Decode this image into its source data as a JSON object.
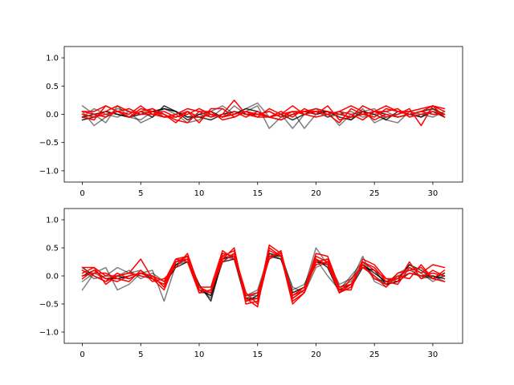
{
  "chart_data": [
    {
      "type": "line",
      "xlim": [
        -1.55,
        32.55
      ],
      "ylim": [
        -1.2,
        1.2
      ],
      "xticks": [
        0,
        5,
        10,
        15,
        20,
        25,
        30
      ],
      "xtick_labels": [
        "0",
        "5",
        "10",
        "15",
        "20",
        "25",
        "30"
      ],
      "yticks": [
        -1.0,
        -0.5,
        0.0,
        0.5,
        1.0
      ],
      "ytick_labels": [
        "−1.0",
        "−0.5",
        "0.0",
        "0.5",
        "1.0"
      ],
      "grid": false,
      "series": [
        {
          "color": "#000000",
          "opacity": 0.5,
          "values": [
            0.15,
            0.0,
            -0.15,
            0.15,
            -0.05,
            -0.1,
            0.05,
            0.1,
            0.0,
            -0.15,
            -0.1,
            0.05,
            0.15,
            0.0,
            0.1,
            0.2,
            -0.05,
            0.0,
            -0.25,
            0.0,
            0.1,
            -0.05,
            0.05,
            -0.1,
            0.1,
            -0.15,
            -0.05,
            0.0,
            0.05,
            -0.05,
            0.1,
            -0.05
          ]
        },
        {
          "color": "#000000",
          "opacity": 0.5,
          "values": [
            0.05,
            -0.2,
            -0.05,
            0.1,
            0.05,
            -0.15,
            -0.05,
            0.1,
            0.05,
            -0.05,
            0.0,
            -0.05,
            0.1,
            -0.05,
            0.05,
            0.15,
            -0.25,
            -0.05,
            0.05,
            -0.25,
            0.0,
            0.05,
            -0.2,
            0.0,
            0.05,
            0.1,
            -0.1,
            -0.15,
            0.05,
            0.0,
            -0.05,
            0.05
          ]
        },
        {
          "color": "#000000",
          "opacity": 0.5,
          "values": [
            -0.05,
            0.1,
            0.0,
            -0.05,
            0.05,
            0.0,
            0.1,
            -0.05,
            0.0,
            0.05,
            -0.05,
            0.0,
            -0.05,
            0.15,
            0.0,
            0.0,
            0.05,
            -0.05,
            0.0,
            0.05,
            0.05,
            -0.05,
            0.0,
            0.05,
            -0.05,
            0.0,
            0.05,
            -0.05,
            0.0,
            0.05,
            0.0,
            0.0
          ]
        },
        {
          "color": "#000000",
          "opacity": 0.8,
          "values": [
            -0.1,
            -0.05,
            0.05,
            0.0,
            -0.05,
            0.0,
            0.05,
            0.1,
            0.05,
            -0.05,
            -0.05,
            -0.1,
            0.0,
            0.05,
            0.0,
            0.0,
            -0.05,
            0.0,
            -0.1,
            0.0,
            0.05,
            0.05,
            0.0,
            -0.05,
            0.0,
            0.05,
            0.0,
            -0.05,
            0.0,
            0.05,
            0.1,
            0.0
          ]
        },
        {
          "color": "#000000",
          "opacity": 0.8,
          "values": [
            -0.05,
            0.0,
            0.05,
            0.0,
            -0.05,
            0.05,
            -0.05,
            0.15,
            0.05,
            -0.1,
            0.0,
            0.05,
            -0.05,
            0.0,
            0.1,
            0.05,
            -0.05,
            -0.1,
            0.0,
            0.05,
            0.0,
            0.05,
            -0.05,
            -0.1,
            0.05,
            0.0,
            -0.1,
            0.05,
            0.0,
            -0.05,
            0.05,
            -0.05
          ]
        },
        {
          "color": "#ff0000",
          "opacity": 1,
          "values": [
            -0.05,
            -0.1,
            0.15,
            0.05,
            0.0,
            0.15,
            0.0,
            -0.05,
            -0.05,
            0.05,
            -0.15,
            0.1,
            0.1,
            -0.05,
            0.05,
            0.0,
            -0.05,
            0.05,
            -0.05,
            0.1,
            0.0,
            0.15,
            -0.1,
            -0.05,
            0.15,
            0.05,
            -0.05,
            0.0,
            0.1,
            -0.2,
            0.15,
            0.1
          ]
        },
        {
          "color": "#ff0000",
          "opacity": 1,
          "values": [
            0.0,
            -0.05,
            0.05,
            0.15,
            0.05,
            0.0,
            0.05,
            -0.05,
            0.0,
            0.1,
            0.05,
            -0.05,
            0.0,
            0.25,
            0.0,
            -0.05,
            0.1,
            0.0,
            0.05,
            0.0,
            -0.05,
            0.0,
            -0.15,
            0.1,
            0.0,
            -0.05,
            0.1,
            0.05,
            0.0,
            0.05,
            0.15,
            -0.05
          ]
        },
        {
          "color": "#ff0000",
          "opacity": 1,
          "values": [
            0.05,
            0.05,
            0.15,
            0.05,
            -0.05,
            0.1,
            0.05,
            0.0,
            -0.15,
            0.05,
            -0.05,
            0.0,
            -0.05,
            0.05,
            -0.05,
            0.05,
            -0.05,
            -0.1,
            0.0,
            0.05,
            0.05,
            0.0,
            0.05,
            0.15,
            0.05,
            -0.1,
            0.0,
            -0.05,
            0.0,
            0.05,
            0.0,
            0.0
          ]
        },
        {
          "color": "#ff0000",
          "opacity": 1,
          "values": [
            0.0,
            -0.05,
            0.0,
            0.05,
            -0.05,
            0.05,
            0.1,
            0.0,
            -0.1,
            -0.15,
            0.05,
            0.05,
            -0.1,
            -0.05,
            0.05,
            -0.05,
            -0.05,
            0.0,
            0.15,
            0.0,
            0.05,
            0.0,
            0.05,
            0.0,
            -0.1,
            0.05,
            0.15,
            0.05,
            0.05,
            0.1,
            0.15,
            0.05
          ]
        },
        {
          "color": "#ff0000",
          "opacity": 1,
          "values": [
            0.05,
            0.0,
            -0.05,
            0.05,
            0.1,
            0.0,
            0.0,
            0.05,
            -0.05,
            0.0,
            0.1,
            0.0,
            -0.05,
            0.0,
            0.05,
            0.0,
            0.05,
            -0.05,
            0.05,
            0.05,
            0.1,
            0.05,
            0.0,
            -0.05,
            0.0,
            0.05,
            0.05,
            0.1,
            -0.05,
            0.0,
            0.05,
            0.0
          ]
        }
      ]
    },
    {
      "type": "line",
      "xlim": [
        -1.55,
        32.55
      ],
      "ylim": [
        -1.2,
        1.2
      ],
      "xticks": [
        0,
        5,
        10,
        15,
        20,
        25,
        30
      ],
      "xtick_labels": [
        "0",
        "5",
        "10",
        "15",
        "20",
        "25",
        "30"
      ],
      "yticks": [
        -1.0,
        -0.5,
        0.0,
        0.5,
        1.0
      ],
      "ytick_labels": [
        "−1.0",
        "−0.5",
        "0.0",
        "0.5",
        "1.0"
      ],
      "grid": false,
      "series": [
        {
          "color": "#000000",
          "opacity": 0.5,
          "values": [
            -0.25,
            0.05,
            0.15,
            -0.25,
            -0.15,
            0.05,
            0.1,
            -0.45,
            0.2,
            0.25,
            -0.2,
            -0.4,
            0.4,
            0.35,
            -0.35,
            -0.25,
            0.4,
            0.3,
            -0.3,
            -0.2,
            0.5,
            0.2,
            -0.2,
            -0.1,
            0.35,
            -0.1,
            -0.2,
            0.05,
            0.15,
            -0.05,
            0.0,
            -0.1
          ]
        },
        {
          "color": "#000000",
          "opacity": 0.5,
          "values": [
            0.1,
            -0.05,
            0.0,
            0.15,
            0.05,
            0.1,
            -0.05,
            -0.15,
            0.25,
            0.3,
            -0.25,
            -0.35,
            0.3,
            0.4,
            -0.4,
            -0.3,
            0.35,
            0.35,
            -0.2,
            -0.3,
            0.15,
            0.25,
            -0.15,
            -0.05,
            0.2,
            0.0,
            -0.15,
            -0.1,
            0.2,
            0.05,
            -0.1,
            0.0
          ]
        },
        {
          "color": "#000000",
          "opacity": 0.5,
          "values": [
            -0.1,
            0.05,
            -0.05,
            0.0,
            0.1,
            -0.05,
            0.05,
            -0.1,
            0.2,
            0.35,
            -0.3,
            -0.3,
            0.35,
            0.3,
            -0.35,
            -0.35,
            0.3,
            0.4,
            -0.25,
            -0.15,
            0.3,
            0.0,
            -0.25,
            0.0,
            0.25,
            -0.05,
            -0.1,
            0.0,
            0.1,
            0.0,
            -0.05,
            0.0
          ]
        },
        {
          "color": "#000000",
          "opacity": 0.8,
          "values": [
            0.0,
            0.1,
            -0.05,
            -0.05,
            0.0,
            0.05,
            0.0,
            -0.2,
            0.2,
            0.3,
            -0.15,
            -0.45,
            0.3,
            0.35,
            -0.4,
            -0.4,
            0.35,
            0.3,
            -0.3,
            -0.2,
            0.25,
            0.2,
            -0.25,
            -0.15,
            0.2,
            0.05,
            -0.1,
            -0.05,
            0.2,
            0.1,
            -0.05,
            0.05
          ]
        },
        {
          "color": "#000000",
          "opacity": 0.8,
          "values": [
            0.15,
            0.0,
            -0.1,
            0.0,
            -0.05,
            0.05,
            -0.05,
            -0.15,
            0.15,
            0.25,
            -0.25,
            -0.35,
            0.25,
            0.3,
            -0.45,
            -0.35,
            0.4,
            0.35,
            -0.4,
            -0.25,
            0.3,
            0.15,
            -0.3,
            -0.2,
            0.15,
            0.1,
            -0.15,
            -0.1,
            0.05,
            0.0,
            0.0,
            -0.05
          ]
        },
        {
          "color": "#ff0000",
          "opacity": 1,
          "values": [
            0.15,
            0.15,
            -0.15,
            0.0,
            0.05,
            0.3,
            -0.05,
            -0.15,
            0.3,
            0.25,
            -0.3,
            -0.25,
            0.35,
            0.45,
            -0.5,
            -0.45,
            0.55,
            0.4,
            -0.45,
            -0.3,
            0.35,
            0.25,
            -0.3,
            -0.2,
            0.25,
            0.15,
            -0.1,
            -0.15,
            0.15,
            0.05,
            0.2,
            0.15
          ]
        },
        {
          "color": "#ff0000",
          "opacity": 1,
          "values": [
            0.1,
            0.0,
            -0.1,
            0.05,
            -0.05,
            0.05,
            0.0,
            -0.2,
            0.25,
            0.35,
            -0.25,
            -0.3,
            0.4,
            0.35,
            -0.4,
            -0.55,
            0.5,
            0.35,
            -0.35,
            -0.25,
            0.4,
            0.35,
            -0.2,
            -0.15,
            0.2,
            -0.05,
            -0.15,
            0.05,
            0.1,
            0.15,
            -0.05,
            -0.1
          ]
        },
        {
          "color": "#ff0000",
          "opacity": 1,
          "values": [
            -0.05,
            0.1,
            -0.05,
            -0.1,
            0.0,
            0.05,
            0.0,
            -0.1,
            0.3,
            0.35,
            -0.2,
            -0.3,
            0.3,
            0.5,
            -0.45,
            -0.4,
            0.45,
            0.35,
            -0.5,
            -0.3,
            0.25,
            0.3,
            -0.25,
            -0.25,
            0.3,
            0.2,
            -0.05,
            -0.1,
            0.25,
            -0.05,
            0.1,
            0.0
          ]
        },
        {
          "color": "#ff0000",
          "opacity": 1,
          "values": [
            0.05,
            0.15,
            0.0,
            0.0,
            0.05,
            0.0,
            -0.05,
            -0.25,
            0.25,
            0.3,
            -0.3,
            -0.25,
            0.25,
            0.4,
            -0.3,
            -0.5,
            0.35,
            0.4,
            -0.35,
            -0.2,
            0.2,
            0.25,
            -0.3,
            -0.05,
            0.15,
            0.0,
            -0.2,
            0.0,
            -0.05,
            0.2,
            -0.05,
            0.1
          ]
        },
        {
          "color": "#ff0000",
          "opacity": 1,
          "values": [
            0.0,
            0.05,
            0.05,
            -0.05,
            -0.1,
            0.1,
            -0.1,
            -0.05,
            0.15,
            0.4,
            -0.2,
            -0.2,
            0.45,
            0.3,
            -0.35,
            -0.3,
            0.3,
            0.45,
            -0.4,
            -0.25,
            0.3,
            0.2,
            -0.3,
            -0.15,
            0.25,
            0.1,
            -0.05,
            -0.05,
            0.05,
            0.0,
            0.05,
            0.0
          ]
        }
      ]
    }
  ]
}
